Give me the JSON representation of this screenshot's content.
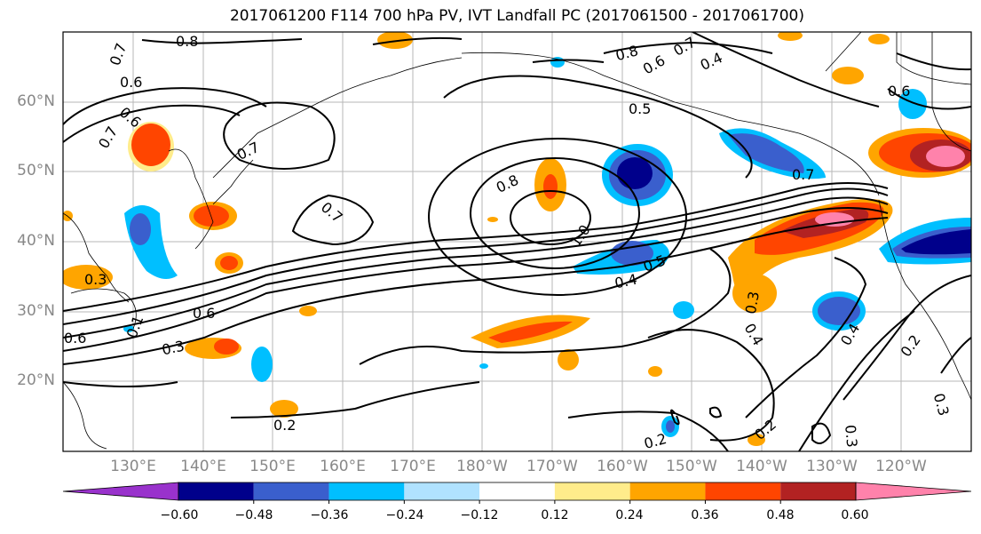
{
  "title": "2017061200 F114 700 hPa PV, IVT Landfall PC (2017061500 - 2017061700)",
  "lat_labels": [
    "60°N",
    "50°N",
    "40°N",
    "30°N",
    "20°N"
  ],
  "lon_labels": [
    "130°E",
    "140°E",
    "150°E",
    "160°E",
    "170°E",
    "180°W",
    "170°W",
    "160°W",
    "150°W",
    "140°W",
    "130°W",
    "120°W"
  ],
  "colorbar": {
    "ticks": [
      "−0.60",
      "−0.48",
      "−0.36",
      "−0.24",
      "−0.12",
      "0.12",
      "0.24",
      "0.36",
      "0.48",
      "0.60"
    ],
    "colors": [
      "#9932cc",
      "#00008b",
      "#3a5fcd",
      "#00bfff",
      "#b0e2ff",
      "#ffffff",
      "#ffec8b",
      "#ffa500",
      "#ff4500",
      "#b22222",
      "#ff82ab"
    ]
  },
  "contour_labels": [
    {
      "text": "0.8"
    },
    {
      "text": "0.6"
    },
    {
      "text": "0.7"
    },
    {
      "text": "0.6"
    },
    {
      "text": "0.7"
    },
    {
      "text": "0.7"
    },
    {
      "text": "0.7"
    },
    {
      "text": "0.8"
    },
    {
      "text": "1.0"
    },
    {
      "text": "0.5"
    },
    {
      "text": "0.4"
    },
    {
      "text": "0.5"
    },
    {
      "text": "0.8"
    },
    {
      "text": "0.6"
    },
    {
      "text": "0.4"
    },
    {
      "text": "0.7"
    },
    {
      "text": "0.7"
    },
    {
      "text": "0.6"
    },
    {
      "text": "0.3"
    },
    {
      "text": "0.6"
    },
    {
      "text": "0.6"
    },
    {
      "text": "0.3"
    },
    {
      "text": "0.2"
    },
    {
      "text": "0.3"
    },
    {
      "text": "0.4"
    },
    {
      "text": "0.4"
    },
    {
      "text": "0.2"
    },
    {
      "text": "0.3"
    },
    {
      "text": "0.2"
    },
    {
      "text": "0.2"
    },
    {
      "text": "0.3"
    },
    {
      "text": "0.1"
    }
  ]
}
